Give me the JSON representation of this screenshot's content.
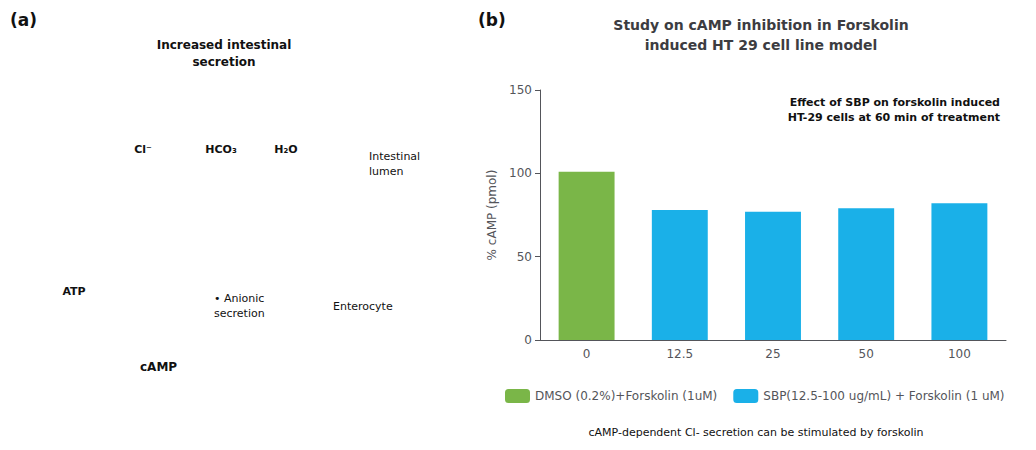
{
  "chart_data": {
    "type": "bar",
    "title": "Study on cAMP inhibition in Forskolin\ninduced HT 29 cell line model",
    "ylabel": "% cAMP (pmol)",
    "categories": [
      "0",
      "12.5",
      "25",
      "50",
      "100"
    ],
    "series": [
      {
        "name": "DMSO (0.2%)+Forskolin (1uM)",
        "color": "#7ab648",
        "values": [
          101,
          null,
          null,
          null,
          null
        ]
      },
      {
        "name": "SBP(12.5-100 ug/mL) + Forskolin (1 uM)",
        "color": "#1ab0e8",
        "values": [
          null,
          78,
          77,
          79,
          82
        ]
      }
    ],
    "ylim": [
      0,
      150
    ],
    "yticks": [
      0,
      50,
      100,
      150
    ],
    "grid": false,
    "legend": "bottom",
    "annotations": [
      "(a)",
      "Increased intestinal\nsecretion",
      "Cl⁻",
      "HCO₃",
      "H₂O",
      "Intestinal\nlumen",
      "• Anionic\nsecretion",
      "Enterocyte",
      "ATP",
      "cAMP",
      "(b)",
      "Effect of SBP on forskolin induced\nHT-29 cells at 60 min of treatment",
      "cAMP-dependent Cl- secretion can be stimulated by forskolin"
    ]
  }
}
